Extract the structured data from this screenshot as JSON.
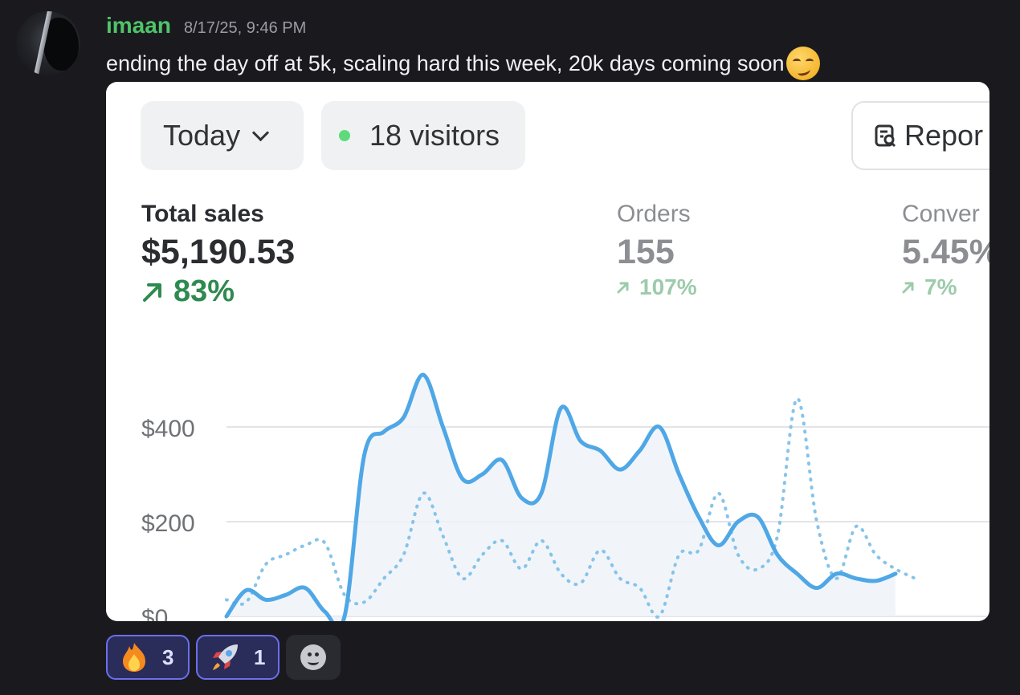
{
  "message": {
    "username": "imaan",
    "timestamp": "8/17/25, 9:46 PM",
    "text": "ending the day off at 5k, scaling hard this week, 20k days coming soon",
    "trailing_emoji": "smirking-face"
  },
  "dashboard": {
    "range_button": "Today",
    "visitors_label": "18 visitors",
    "report_button": "Repor",
    "metrics": [
      {
        "label": "Total sales",
        "value": "$5,190.53",
        "change": "83%"
      },
      {
        "label": "Orders",
        "value": "155",
        "change": "107%"
      },
      {
        "label": "Conver",
        "value": "5.45%",
        "change": "7%"
      }
    ]
  },
  "chart_data": {
    "type": "line",
    "y_ticks": [
      "$400",
      "$200",
      "$0"
    ],
    "ylim": [
      0,
      400
    ],
    "grid": true,
    "series": [
      {
        "style": "solid",
        "color": "#4fa7e6",
        "x": [
          0,
          1,
          2,
          3,
          4,
          5,
          6,
          7,
          8,
          9,
          10,
          11,
          12,
          13,
          14,
          15,
          16,
          17,
          18,
          19,
          20,
          21,
          22,
          23,
          24,
          25,
          26,
          27,
          28,
          29,
          30,
          31,
          32,
          33,
          34,
          35,
          36,
          37,
          38,
          39,
          40
        ],
        "values": [
          0,
          55,
          35,
          45,
          60,
          10,
          0,
          340,
          390,
          420,
          510,
          400,
          290,
          300,
          330,
          250,
          260,
          440,
          370,
          350,
          310,
          350,
          400,
          300,
          210,
          150,
          200,
          210,
          130,
          90,
          60,
          90,
          80,
          75,
          90,
          0,
          0,
          0,
          0,
          0,
          0
        ]
      },
      {
        "style": "dotted",
        "color": "#86c3ea",
        "x": [
          0,
          1,
          2,
          3,
          4,
          5,
          6,
          7,
          8,
          9,
          10,
          11,
          12,
          13,
          14,
          15,
          16,
          17,
          18,
          19,
          20,
          21,
          22,
          23,
          24,
          25,
          26,
          27,
          28,
          29,
          30,
          31,
          32,
          33,
          34,
          35,
          36,
          37,
          38,
          39,
          40
        ],
        "values": [
          35,
          30,
          110,
          130,
          150,
          155,
          45,
          30,
          80,
          130,
          260,
          170,
          80,
          130,
          160,
          100,
          160,
          90,
          70,
          140,
          80,
          60,
          0,
          130,
          140,
          260,
          130,
          100,
          170,
          460,
          200,
          80,
          190,
          130,
          100,
          80,
          0,
          0,
          0,
          0,
          0
        ]
      }
    ]
  },
  "reactions": [
    {
      "emoji": "fire",
      "count": "3"
    },
    {
      "emoji": "rocket",
      "count": "1"
    }
  ],
  "colors": {
    "background": "#1a1a1e",
    "username": "#4fc46a",
    "accent_reaction": "#6b6ff0",
    "positive_change": "#2f8a4f"
  }
}
